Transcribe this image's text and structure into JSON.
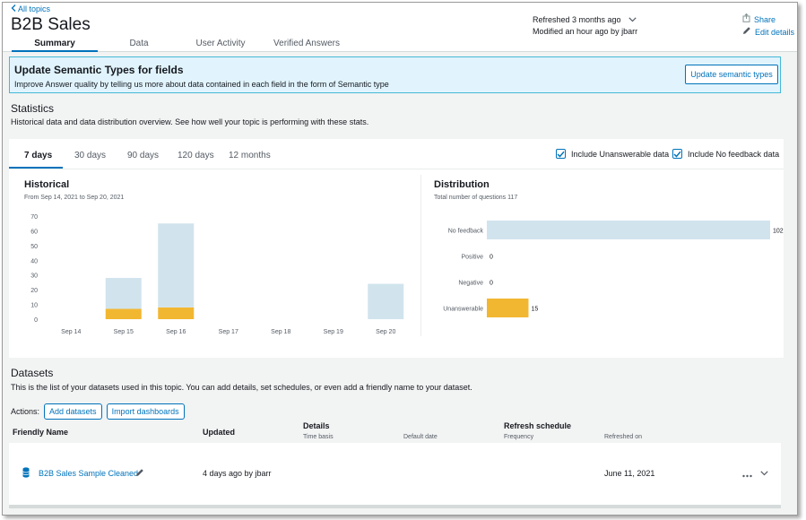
{
  "header": {
    "back_link": "All topics",
    "title": "B2B Sales",
    "tabs": [
      {
        "label": "Summary",
        "active": true
      },
      {
        "label": "Data",
        "active": false
      },
      {
        "label": "User Activity",
        "active": false
      },
      {
        "label": "Verified Answers",
        "active": false
      }
    ],
    "refreshed": "Refreshed 3 months ago",
    "modified": "Modified an hour ago by jbarr",
    "share": "Share",
    "edit_details": "Edit details"
  },
  "banner": {
    "title": "Update Semantic Types for fields",
    "description": "Improve Answer quality by telling us more about data contained in each field in the form of Semantic type",
    "button": "Update semantic types"
  },
  "statistics": {
    "title": "Statistics",
    "description": "Historical data and data distribution overview. See how well your topic is performing with these stats.",
    "ranges": [
      "7 days",
      "30 days",
      "90 days",
      "120 days",
      "12 months"
    ],
    "active_range": "7 days",
    "include_unanswerable": "Include Unanswerable data",
    "include_no_feedback": "Include No feedback data"
  },
  "chart_data": [
    {
      "type": "bar",
      "title": "Historical",
      "subtitle": "From Sep 14, 2021 to Sep 20, 2021",
      "categories": [
        "Sep 14",
        "Sep 15",
        "Sep 16",
        "Sep 17",
        "Sep 18",
        "Sep 19",
        "Sep 20"
      ],
      "series": [
        {
          "values": [
            0,
            7,
            8,
            0,
            0,
            0,
            0
          ],
          "color": "#f2b731"
        },
        {
          "values": [
            0,
            21,
            57,
            0,
            0,
            0,
            24
          ],
          "color": "#d1e4ee"
        }
      ],
      "stacked": true,
      "ylim": [
        0,
        70
      ],
      "yticks": [
        0,
        10,
        20,
        30,
        40,
        50,
        60,
        70
      ],
      "grid": false
    },
    {
      "type": "bar",
      "orientation": "horizontal",
      "title": "Distribution",
      "subtitle": "Total number of questions 117",
      "categories": [
        "No feedback",
        "Positive",
        "Negative",
        "Unanswerable"
      ],
      "values": [
        102,
        0,
        0,
        15
      ],
      "colors": [
        "#d1e4ee",
        "#d1e4ee",
        "#d1e4ee",
        "#f2b731"
      ],
      "xlim": [
        0,
        102
      ]
    }
  ],
  "datasets": {
    "title": "Datasets",
    "description": "This is the list of your datasets used in this topic. You can add details, set schedules, or even add a friendly name to your dataset.",
    "actions_label": "Actions:",
    "add_button": "Add datasets",
    "import_button": "Import dashboards",
    "columns": {
      "friendly_name": "Friendly Name",
      "updated": "Updated",
      "details": "Details",
      "time_basis": "Time basis",
      "default_date": "Default date",
      "refresh_schedule": "Refresh schedule",
      "frequency": "Frequency",
      "refreshed_on": "Refreshed on"
    },
    "rows": [
      {
        "name": "B2B Sales Sample Cleaned",
        "updated": "4 days ago by jbarr",
        "refreshed_on": "June 11, 2021"
      }
    ]
  },
  "colors": {
    "accent": "#0073bb",
    "unanswerable": "#f2b731",
    "no_feedback": "#d1e4ee"
  }
}
